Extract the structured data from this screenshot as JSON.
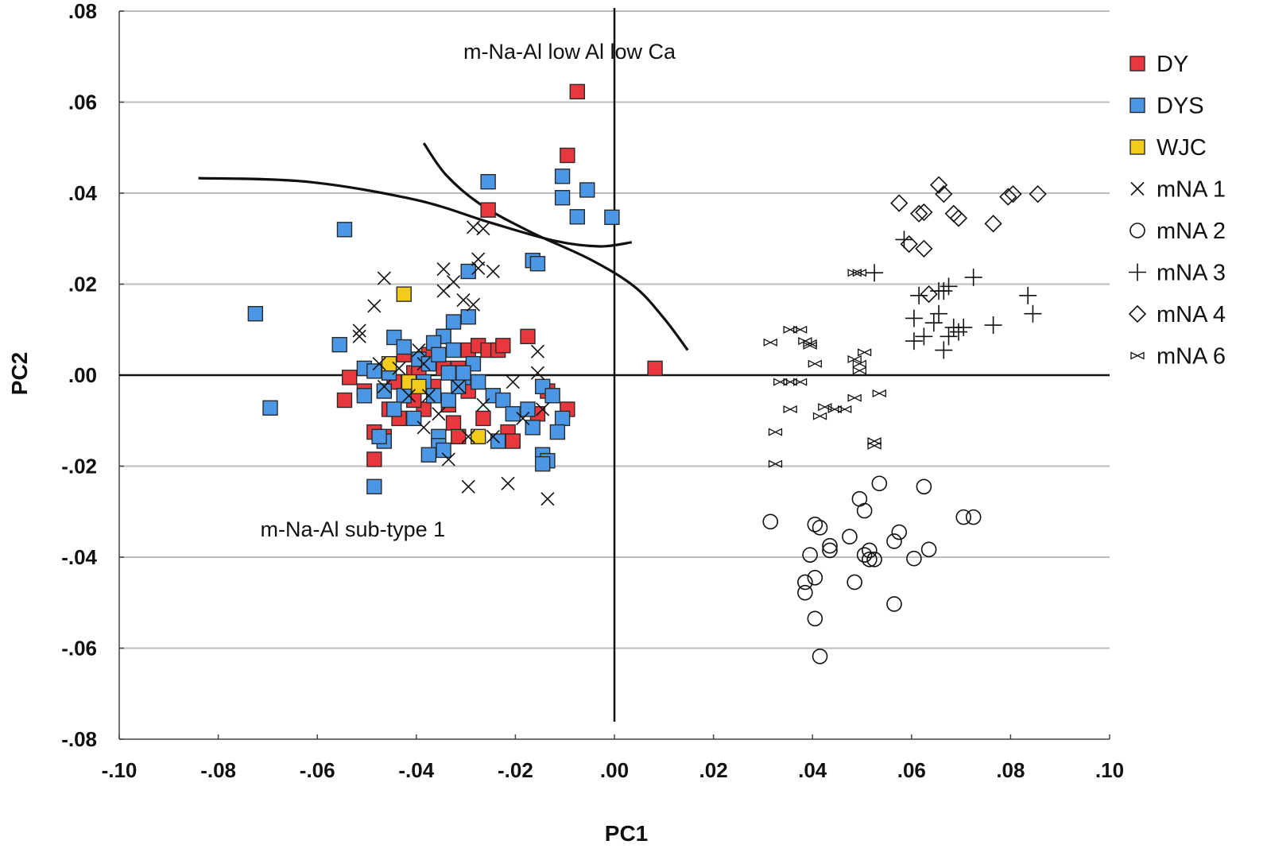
{
  "chart_data": {
    "type": "scatter",
    "xlabel": "PC1",
    "ylabel": "PC2",
    "xlim": [
      -0.1,
      0.1
    ],
    "ylim": [
      -0.08,
      0.08
    ],
    "x_ticks": [
      -0.1,
      -0.08,
      -0.06,
      -0.04,
      -0.02,
      0.0,
      0.02,
      0.04,
      0.06,
      0.08,
      0.1
    ],
    "x_tick_labels": [
      "-.10",
      "-.08",
      "-.06",
      "-.04",
      "-.02",
      ".00",
      ".02",
      ".04",
      ".06",
      ".08",
      ".10"
    ],
    "y_ticks": [
      0.08,
      0.06,
      0.04,
      0.02,
      0.0,
      -0.02,
      -0.04,
      -0.06,
      -0.08
    ],
    "y_tick_labels": [
      ".08",
      ".06",
      ".04",
      ".02",
      ".00",
      "-.02",
      "-.04",
      "-.06",
      "-.08"
    ],
    "grid": "horizontal",
    "reference_lines": {
      "x": 0.0,
      "y": 0.0
    },
    "annotations": [
      {
        "text": "m-Na-Al low Al low Ca",
        "x": -0.0305,
        "y": 0.0695
      },
      {
        "text": "m-Na-Al sub-type 1",
        "x": -0.0715,
        "y": -0.0355
      }
    ],
    "curves": [
      {
        "name": "boundary-curve-1",
        "points": [
          [
            -0.084,
            0.0433
          ],
          [
            -0.062,
            0.0425
          ],
          [
            -0.04,
            0.0385
          ],
          [
            -0.025,
            0.0335
          ],
          [
            -0.012,
            0.0295
          ],
          [
            -0.003,
            0.0283
          ],
          [
            0.0035,
            0.0292
          ]
        ]
      },
      {
        "name": "boundary-curve-2",
        "points": [
          [
            -0.0385,
            0.051
          ],
          [
            -0.034,
            0.044
          ],
          [
            -0.027,
            0.0375
          ],
          [
            -0.017,
            0.0315
          ],
          [
            -0.005,
            0.0255
          ],
          [
            0.004,
            0.0195
          ],
          [
            0.01,
            0.0125
          ],
          [
            0.0148,
            0.0055
          ]
        ]
      }
    ],
    "legend_position": "right",
    "series": [
      {
        "name": "DY",
        "label": "DY",
        "marker": "square",
        "color": "#e8383d",
        "points": [
          [
            -0.0075,
            0.0623
          ],
          [
            -0.0095,
            0.0483
          ],
          [
            -0.0255,
            0.0363
          ],
          [
            0.0082,
            0.0015
          ],
          [
            -0.0535,
            -0.0005
          ],
          [
            -0.0545,
            -0.0055
          ],
          [
            -0.0505,
            -0.0035
          ],
          [
            -0.0485,
            -0.0125
          ],
          [
            -0.0465,
            -0.0135
          ],
          [
            -0.0485,
            -0.0185
          ],
          [
            -0.0455,
            -0.0075
          ],
          [
            -0.0445,
            -0.0015
          ],
          [
            -0.0425,
            0.0045
          ],
          [
            -0.0405,
            0.0005
          ],
          [
            -0.0385,
            -0.0075
          ],
          [
            -0.0365,
            -0.0025
          ],
          [
            -0.0355,
            0.0035
          ],
          [
            -0.0345,
            0.0085
          ],
          [
            -0.0335,
            -0.0065
          ],
          [
            -0.0325,
            -0.0105
          ],
          [
            -0.0315,
            0.0015
          ],
          [
            -0.0295,
            0.0055
          ],
          [
            -0.0275,
            0.0065
          ],
          [
            -0.0265,
            -0.0095
          ],
          [
            -0.0255,
            0.0055
          ],
          [
            -0.0235,
            0.0055
          ],
          [
            -0.0225,
            0.0065
          ],
          [
            -0.0215,
            -0.0125
          ],
          [
            -0.0205,
            -0.0145
          ],
          [
            -0.0175,
            0.0085
          ],
          [
            -0.0155,
            -0.0085
          ],
          [
            -0.0135,
            -0.0035
          ],
          [
            -0.0095,
            -0.0075
          ],
          [
            -0.0435,
            -0.0095
          ],
          [
            -0.0405,
            -0.0055
          ],
          [
            -0.0375,
            0.0045
          ],
          [
            -0.0345,
            0.0015
          ],
          [
            -0.0315,
            -0.0135
          ],
          [
            -0.0295,
            -0.0035
          ],
          [
            -0.0395,
            0.0005
          ]
        ]
      },
      {
        "name": "DYS",
        "label": "DYS",
        "marker": "square",
        "color": "#4b97e6",
        "points": [
          [
            -0.0005,
            0.0347
          ],
          [
            -0.0105,
            0.0437
          ],
          [
            -0.0055,
            0.0407
          ],
          [
            -0.0105,
            0.039
          ],
          [
            -0.0075,
            0.0348
          ],
          [
            -0.0255,
            0.0425
          ],
          [
            -0.0545,
            0.032
          ],
          [
            -0.0725,
            0.0135
          ],
          [
            -0.0695,
            -0.0072
          ],
          [
            -0.0555,
            0.0067
          ],
          [
            -0.0485,
            -0.0245
          ],
          [
            -0.0165,
            0.0252
          ],
          [
            -0.0155,
            0.0245
          ],
          [
            -0.0295,
            0.0228
          ],
          [
            -0.0295,
            0.0128
          ],
          [
            -0.0325,
            0.0117
          ],
          [
            -0.0345,
            0.0085
          ],
          [
            -0.0365,
            0.0071
          ],
          [
            -0.0445,
            0.0083
          ],
          [
            -0.0425,
            0.0062
          ],
          [
            -0.0505,
            0.0015
          ],
          [
            -0.0455,
            0.0005
          ],
          [
            -0.0395,
            0.0035
          ],
          [
            -0.0375,
            0.0025
          ],
          [
            -0.0355,
            0.0045
          ],
          [
            -0.0325,
            0.0055
          ],
          [
            -0.0285,
            0.0025
          ],
          [
            -0.0275,
            -0.0015
          ],
          [
            -0.0305,
            -0.0005
          ],
          [
            -0.0385,
            -0.0015
          ],
          [
            -0.0425,
            -0.0045
          ],
          [
            -0.0465,
            -0.0035
          ],
          [
            -0.0505,
            -0.0045
          ],
          [
            -0.0445,
            -0.0075
          ],
          [
            -0.0405,
            -0.0095
          ],
          [
            -0.0365,
            -0.0045
          ],
          [
            -0.0335,
            -0.0055
          ],
          [
            -0.0245,
            -0.0045
          ],
          [
            -0.0225,
            -0.0055
          ],
          [
            -0.0205,
            -0.0085
          ],
          [
            -0.0175,
            -0.0075
          ],
          [
            -0.0165,
            -0.0115
          ],
          [
            -0.0145,
            -0.0025
          ],
          [
            -0.0125,
            -0.0045
          ],
          [
            -0.0105,
            -0.0095
          ],
          [
            -0.0115,
            -0.0125
          ],
          [
            -0.0145,
            -0.0175
          ],
          [
            -0.0135,
            -0.0188
          ],
          [
            -0.0145,
            -0.0195
          ],
          [
            -0.0235,
            -0.0145
          ],
          [
            -0.0355,
            -0.0135
          ],
          [
            -0.0355,
            -0.0155
          ],
          [
            -0.0345,
            -0.0165
          ],
          [
            -0.0375,
            -0.0175
          ],
          [
            -0.0465,
            -0.0145
          ],
          [
            -0.0475,
            -0.0135
          ],
          [
            -0.0315,
            -0.0025
          ],
          [
            -0.0485,
            0.0009
          ],
          [
            -0.0335,
            0.0005
          ],
          [
            -0.0305,
            0.0005
          ]
        ]
      },
      {
        "name": "WJC",
        "label": "WJC",
        "marker": "square",
        "color": "#f2cb1d",
        "points": [
          [
            -0.0425,
            0.0178
          ],
          [
            -0.0455,
            0.0025
          ],
          [
            -0.0415,
            -0.0015
          ],
          [
            -0.0395,
            -0.0025
          ],
          [
            -0.0275,
            -0.0135
          ]
        ]
      },
      {
        "name": "mNA 1",
        "label": "mNA 1",
        "marker": "x",
        "color": "#111111",
        "points": [
          [
            -0.0465,
            0.0213
          ],
          [
            -0.0485,
            0.0152
          ],
          [
            -0.0515,
            0.0098
          ],
          [
            -0.0515,
            0.0085
          ],
          [
            -0.0285,
            0.0325
          ],
          [
            -0.0265,
            0.0322
          ],
          [
            -0.0275,
            0.0255
          ],
          [
            -0.0275,
            0.0235
          ],
          [
            -0.0245,
            0.0228
          ],
          [
            -0.0345,
            0.0233
          ],
          [
            -0.0345,
            0.0185
          ],
          [
            -0.0325,
            0.0205
          ],
          [
            -0.0285,
            0.0155
          ],
          [
            -0.0305,
            0.0165
          ],
          [
            -0.0395,
            0.0055
          ],
          [
            -0.0385,
            0.0025
          ],
          [
            -0.0475,
            0.0025
          ],
          [
            -0.0465,
            -0.0025
          ],
          [
            -0.0435,
            0.0015
          ],
          [
            -0.0375,
            -0.0045
          ],
          [
            -0.0355,
            -0.0085
          ],
          [
            -0.0315,
            -0.0025
          ],
          [
            -0.0265,
            -0.0065
          ],
          [
            -0.0205,
            -0.0015
          ],
          [
            -0.0155,
            0.0052
          ],
          [
            -0.0155,
            0.0005
          ],
          [
            -0.0145,
            -0.0075
          ],
          [
            -0.0295,
            -0.0135
          ],
          [
            -0.0335,
            -0.0185
          ],
          [
            -0.0295,
            -0.0245
          ],
          [
            -0.0215,
            -0.0238
          ],
          [
            -0.0135,
            -0.0272
          ],
          [
            -0.0245,
            -0.0135
          ],
          [
            -0.0185,
            -0.0095
          ],
          [
            -0.0385,
            -0.0115
          ],
          [
            -0.0415,
            -0.0045
          ]
        ]
      },
      {
        "name": "mNA 2",
        "label": "mNA 2",
        "marker": "circle",
        "color": "#111111",
        "points": [
          [
            0.0315,
            -0.0322
          ],
          [
            0.0405,
            -0.0328
          ],
          [
            0.0415,
            -0.0335
          ],
          [
            0.0435,
            -0.0375
          ],
          [
            0.0435,
            -0.0385
          ],
          [
            0.0395,
            -0.0395
          ],
          [
            0.0385,
            -0.0455
          ],
          [
            0.0385,
            -0.0478
          ],
          [
            0.0405,
            -0.0445
          ],
          [
            0.0405,
            -0.0535
          ],
          [
            0.0415,
            -0.0618
          ],
          [
            0.0475,
            -0.0355
          ],
          [
            0.0485,
            -0.0455
          ],
          [
            0.0495,
            -0.0272
          ],
          [
            0.0505,
            -0.0298
          ],
          [
            0.0505,
            -0.0395
          ],
          [
            0.0515,
            -0.0385
          ],
          [
            0.0515,
            -0.0405
          ],
          [
            0.0525,
            -0.0405
          ],
          [
            0.0535,
            -0.0238
          ],
          [
            0.0565,
            -0.0365
          ],
          [
            0.0575,
            -0.0345
          ],
          [
            0.0565,
            -0.0503
          ],
          [
            0.0605,
            -0.0403
          ],
          [
            0.0625,
            -0.0245
          ],
          [
            0.0635,
            -0.0383
          ],
          [
            0.0705,
            -0.0312
          ],
          [
            0.0725,
            -0.0312
          ]
        ]
      },
      {
        "name": "mNA 3",
        "label": "mNA 3",
        "marker": "plus",
        "color": "#111111",
        "points": [
          [
            0.0585,
            0.0298
          ],
          [
            0.0525,
            0.0225
          ],
          [
            0.0605,
            0.0125
          ],
          [
            0.0615,
            0.0175
          ],
          [
            0.0625,
            0.0085
          ],
          [
            0.0645,
            0.0115
          ],
          [
            0.0655,
            0.0135
          ],
          [
            0.0665,
            0.0185
          ],
          [
            0.0675,
            0.0195
          ],
          [
            0.0665,
            0.0055
          ],
          [
            0.0675,
            0.0085
          ],
          [
            0.0685,
            0.0105
          ],
          [
            0.0695,
            0.0095
          ],
          [
            0.0705,
            0.0105
          ],
          [
            0.0725,
            0.0215
          ],
          [
            0.0765,
            0.011
          ],
          [
            0.0835,
            0.0175
          ],
          [
            0.0845,
            0.0135
          ],
          [
            0.0605,
            0.0075
          ],
          [
            0.0655,
            0.0185
          ]
        ]
      },
      {
        "name": "mNA 4",
        "label": "mNA 4",
        "marker": "diamond",
        "color": "#111111",
        "points": [
          [
            0.0575,
            0.0378
          ],
          [
            0.0595,
            0.0288
          ],
          [
            0.0615,
            0.0355
          ],
          [
            0.0625,
            0.0358
          ],
          [
            0.0625,
            0.0278
          ],
          [
            0.0655,
            0.0418
          ],
          [
            0.0665,
            0.0398
          ],
          [
            0.0685,
            0.0355
          ],
          [
            0.0695,
            0.0345
          ],
          [
            0.0765,
            0.0333
          ],
          [
            0.0795,
            0.0392
          ],
          [
            0.0805,
            0.0398
          ],
          [
            0.0855,
            0.0398
          ],
          [
            0.0635,
            0.0178
          ]
        ]
      },
      {
        "name": "mNA 6",
        "label": "mNA 6",
        "marker": "bowtie",
        "color": "#111111",
        "points": [
          [
            0.0315,
            0.0072
          ],
          [
            0.0355,
            0.01
          ],
          [
            0.0375,
            0.01
          ],
          [
            0.0385,
            0.0075
          ],
          [
            0.0395,
            0.007
          ],
          [
            0.0405,
            0.0025
          ],
          [
            0.0335,
            -0.0015
          ],
          [
            0.0355,
            -0.0015
          ],
          [
            0.0375,
            -0.0015
          ],
          [
            0.0355,
            -0.0075
          ],
          [
            0.0325,
            -0.0125
          ],
          [
            0.0325,
            -0.0195
          ],
          [
            0.0425,
            -0.007
          ],
          [
            0.0445,
            -0.0075
          ],
          [
            0.0415,
            -0.009
          ],
          [
            0.0485,
            0.0225
          ],
          [
            0.0495,
            0.0225
          ],
          [
            0.0485,
            0.0035
          ],
          [
            0.0495,
            0.0025
          ],
          [
            0.0505,
            0.005
          ],
          [
            0.0495,
            0.001
          ],
          [
            0.0535,
            -0.004
          ],
          [
            0.0525,
            -0.0145
          ],
          [
            0.0525,
            -0.0155
          ],
          [
            0.0395,
            0.0065
          ],
          [
            0.0485,
            -0.005
          ],
          [
            0.0465,
            -0.0075
          ]
        ]
      }
    ]
  }
}
